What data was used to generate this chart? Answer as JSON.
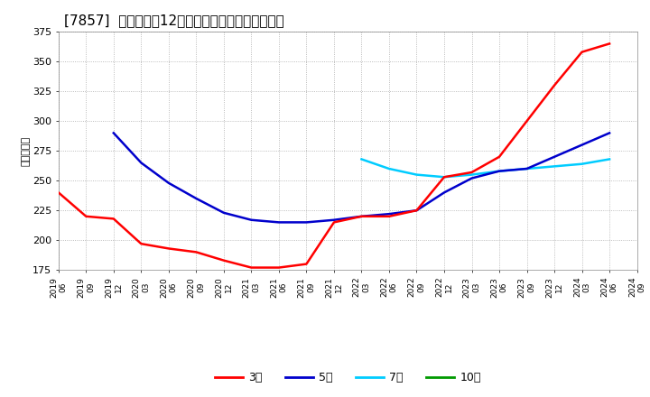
{
  "title": "[7857]  当期純利益12か月移動合計の平均値の推移",
  "ylabel": "（百万円）",
  "ylim": [
    175,
    375
  ],
  "yticks": [
    175,
    200,
    225,
    250,
    275,
    300,
    325,
    350,
    375
  ],
  "background_color": "#ffffff",
  "plot_bg_color": "#ffffff",
  "grid_color": "#aaaaaa",
  "title_fontsize": 11,
  "legend_labels": [
    "3年",
    "5年",
    "7年",
    "10年"
  ],
  "legend_colors": [
    "#ff0000",
    "#0000cc",
    "#00ccff",
    "#009900"
  ],
  "dates_3y": [
    "2019/06",
    "2019/09",
    "2019/12",
    "2020/03",
    "2020/06",
    "2020/09",
    "2020/12",
    "2021/03",
    "2021/06",
    "2021/09",
    "2021/12",
    "2022/03",
    "2022/06",
    "2022/09",
    "2022/12",
    "2023/03",
    "2023/06",
    "2023/09",
    "2023/12",
    "2024/03",
    "2024/06"
  ],
  "values_3y": [
    240,
    220,
    218,
    197,
    193,
    190,
    183,
    177,
    177,
    180,
    215,
    220,
    220,
    225,
    253,
    257,
    270,
    300,
    330,
    358,
    365
  ],
  "dates_5y": [
    "2019/12",
    "2020/03",
    "2020/06",
    "2020/09",
    "2020/12",
    "2021/03",
    "2021/06",
    "2021/09",
    "2021/12",
    "2022/03",
    "2022/06",
    "2022/09",
    "2022/12",
    "2023/03",
    "2023/06",
    "2023/09",
    "2023/12",
    "2024/03",
    "2024/06"
  ],
  "values_5y": [
    290,
    265,
    248,
    235,
    223,
    217,
    215,
    215,
    217,
    220,
    222,
    225,
    240,
    252,
    258,
    260,
    270,
    280,
    290
  ],
  "dates_7y": [
    "2022/03",
    "2022/06",
    "2022/09",
    "2022/12",
    "2023/03",
    "2023/06",
    "2023/09",
    "2023/12",
    "2024/03",
    "2024/06"
  ],
  "values_7y": [
    268,
    260,
    255,
    253,
    255,
    258,
    260,
    262,
    264,
    268
  ],
  "dates_10y": [],
  "values_10y": [],
  "xticklabels": [
    "2019/06",
    "2019/09",
    "2019/12",
    "2020/03",
    "2020/06",
    "2020/09",
    "2020/12",
    "2021/03",
    "2021/06",
    "2021/09",
    "2021/12",
    "2022/03",
    "2022/06",
    "2022/09",
    "2022/12",
    "2023/03",
    "2023/06",
    "2023/09",
    "2023/12",
    "2024/03",
    "2024/06",
    "2024/09"
  ]
}
